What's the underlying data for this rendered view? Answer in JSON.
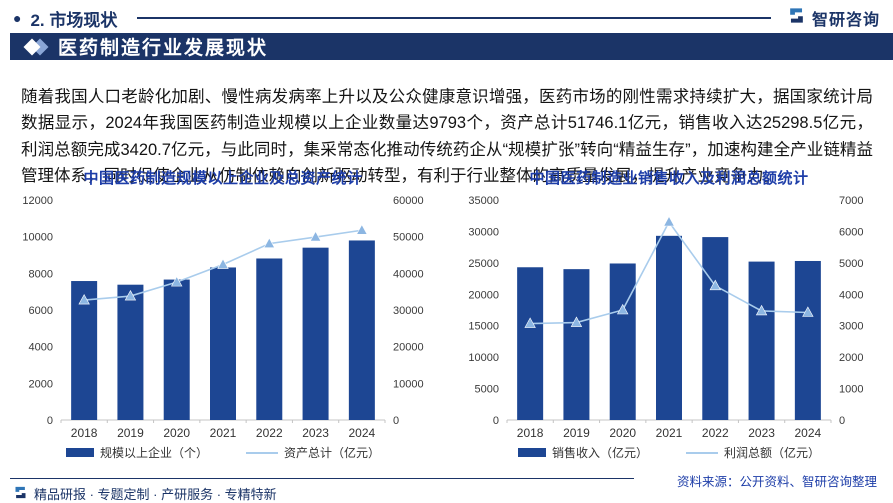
{
  "page": {
    "header": {
      "bullet": "●",
      "title": "2. 市场现状",
      "brand": "智研咨询"
    },
    "banner": {
      "title": "医药制造行业发展现状"
    },
    "paragraph": "随着我国人口老龄化加剧、慢性病发病率上升以及公众健康意识增强，医药市场的刚性需求持续扩大，据国家统计局数据显示，2024年我国医药制造业规模以上企业数量达9793个，资产总计51746.1亿元，销售收入达25298.5亿元，利润总额完成3420.7亿元，与此同时，集采常态化推动传统药企从“规模扩张”转向“精益生存”，加速构建全产业链精益管理体系，同时促使企业从仿制依赖向创新驱动转型，有利于行业整体的高质量发展，提升产业竞争力。",
    "source": "资料来源：公开资料、智研咨询整理",
    "footer": "精品研报 · 专题定制 · 产研服务 · 专精特新"
  },
  "chart_data": [
    {
      "type": "bar",
      "subtype": "bar+line-dual-axis",
      "title": "中国医药制造规模以上企业及总资产统计",
      "categories": [
        "2018",
        "2019",
        "2020",
        "2021",
        "2022",
        "2023",
        "2024"
      ],
      "series": [
        {
          "name": "规模以上企业（个）",
          "type": "bar",
          "axis": "left",
          "values": [
            7580,
            7380,
            7660,
            8320,
            8810,
            9400,
            9793
          ]
        },
        {
          "name": "资产总计（亿元）",
          "type": "line",
          "axis": "right",
          "values": [
            32700,
            33800,
            37600,
            42400,
            48100,
            49900,
            51746.1
          ]
        }
      ],
      "left_axis": {
        "min": 0,
        "max": 12000,
        "step": 2000
      },
      "right_axis": {
        "min": 0,
        "max": 60000,
        "step": 10000
      },
      "grid": false,
      "legend_position": "bottom"
    },
    {
      "type": "bar",
      "subtype": "bar+line-dual-axis",
      "title": "中国医药制造业销售收入及利润总额统计",
      "categories": [
        "2018",
        "2019",
        "2020",
        "2021",
        "2022",
        "2023",
        "2024"
      ],
      "series": [
        {
          "name": "销售收入（亿元）",
          "type": "bar",
          "axis": "left",
          "values": [
            24300,
            24000,
            24900,
            29300,
            29100,
            25200,
            25298.5
          ]
        },
        {
          "name": "利润总额（亿元）",
          "type": "line",
          "axis": "right",
          "values": [
            3070,
            3100,
            3500,
            6300,
            4270,
            3470,
            3420.7
          ]
        }
      ],
      "left_axis": {
        "min": 0,
        "max": 35000,
        "step": 5000
      },
      "right_axis": {
        "min": 0,
        "max": 7000,
        "step": 1000
      },
      "grid": false,
      "legend_position": "bottom"
    }
  ],
  "colors": {
    "navy": "#1b3467",
    "bar_blue": "#1d4693",
    "line_blue": "#a9ccec",
    "marker_blue": "#8cb6e2",
    "title_blue": "#1d3da8",
    "axis_text": "#3a3a3a",
    "axis_line": "#c4c4c4",
    "logo_light_blue": "#2e75b6"
  }
}
